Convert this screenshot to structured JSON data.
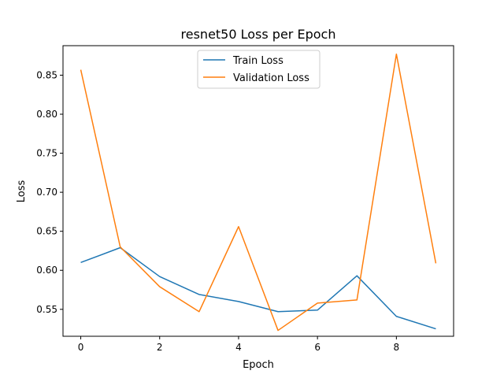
{
  "chart_data": {
    "type": "line",
    "title": "resnet50 Loss per Epoch",
    "xlabel": "Epoch",
    "ylabel": "Loss",
    "x": [
      0,
      1,
      2,
      3,
      4,
      5,
      6,
      7,
      8,
      9
    ],
    "xlim": [
      -0.45,
      9.45
    ],
    "ylim": [
      0.5155,
      0.8878
    ],
    "xticks": [
      0,
      2,
      4,
      6,
      8
    ],
    "yticks": [
      0.55,
      0.6,
      0.65,
      0.7,
      0.75,
      0.8,
      0.85
    ],
    "grid": false,
    "legend_position": "upper center",
    "series": [
      {
        "name": "Train Loss",
        "color": "#1f77b4",
        "values": [
          0.61,
          0.629,
          0.592,
          0.569,
          0.56,
          0.547,
          0.549,
          0.593,
          0.541,
          0.525
        ]
      },
      {
        "name": "Validation Loss",
        "color": "#ff7f0e",
        "values": [
          0.857,
          0.63,
          0.579,
          0.547,
          0.656,
          0.523,
          0.558,
          0.562,
          0.877,
          0.609
        ]
      }
    ]
  }
}
